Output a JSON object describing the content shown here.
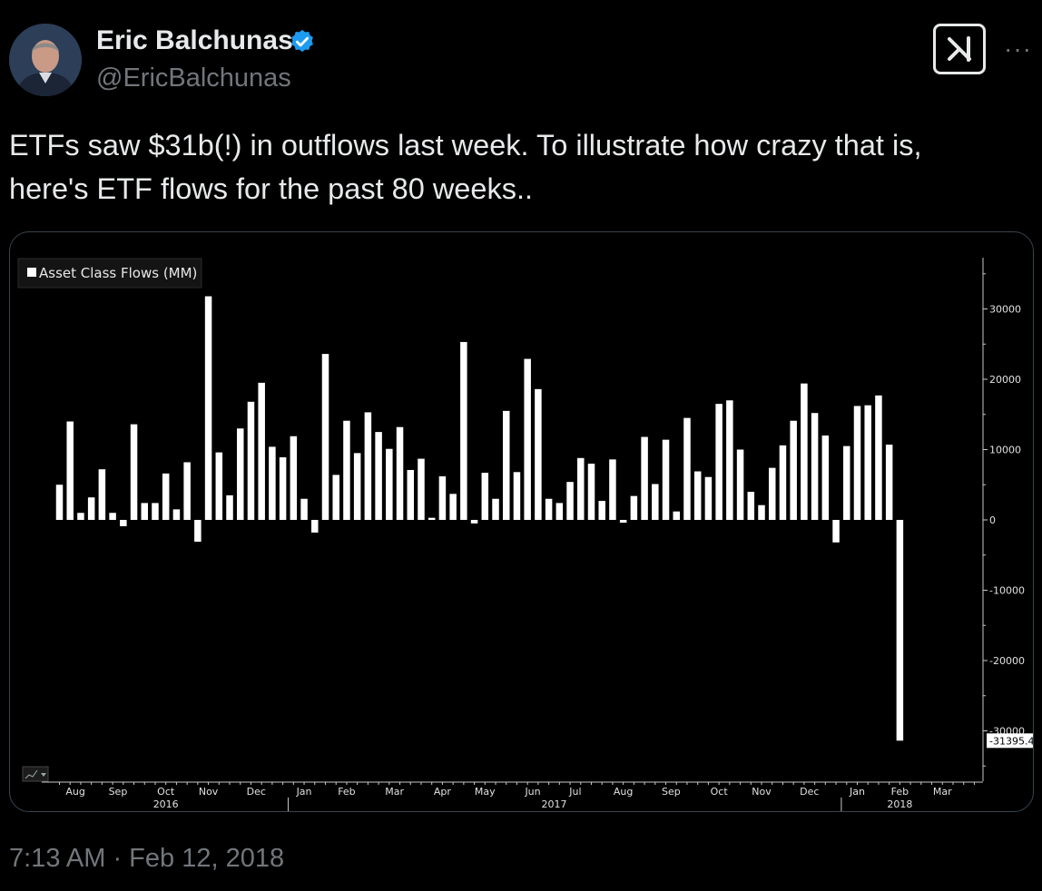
{
  "author": {
    "name": "Eric Balchunas",
    "handle": "@EricBalchunas",
    "verified": true
  },
  "tweet": {
    "text_line1": "ETFs saw $31b(!) in outflows last week. To illustrate how crazy that is,",
    "text_line2": "here's ETF flows for the past 80 weeks..",
    "timestamp": "7:13 AM · Feb 12, 2018"
  },
  "icons": {
    "more": "more-horizontal-icon",
    "grok": "grok-icon",
    "verified": "verified-badge-icon"
  },
  "colors": {
    "background": "#000000",
    "text": "#e7e9ea",
    "muted": "#71767b",
    "verified": "#1d9bf0",
    "bar": "#ffffff"
  },
  "chart_data": {
    "type": "bar",
    "legend": "Asset Class Flows (MM)",
    "ylim": [
      -37000,
      37000
    ],
    "y_ticks": [
      30000,
      20000,
      10000,
      0,
      -10000,
      -20000,
      -30000
    ],
    "y_tick_labels": [
      "30000",
      "20000",
      "10000",
      "0",
      "-10000",
      "-20000",
      "-30000"
    ],
    "last_value_label": "-31395.4",
    "month_labels": [
      {
        "label": "Aug",
        "week": 1.5
      },
      {
        "label": "Sep",
        "week": 5.5
      },
      {
        "label": "Oct",
        "week": 10
      },
      {
        "label": "Nov",
        "week": 14
      },
      {
        "label": "Dec",
        "week": 18.5
      },
      {
        "label": "Jan",
        "week": 23
      },
      {
        "label": "Feb",
        "week": 27
      },
      {
        "label": "Mar",
        "week": 31.5
      },
      {
        "label": "Apr",
        "week": 36
      },
      {
        "label": "May",
        "week": 40
      },
      {
        "label": "Jun",
        "week": 44.5
      },
      {
        "label": "Jul",
        "week": 48.5
      },
      {
        "label": "Aug",
        "week": 53
      },
      {
        "label": "Sep",
        "week": 57.5
      },
      {
        "label": "Oct",
        "week": 62
      },
      {
        "label": "Nov",
        "week": 66
      },
      {
        "label": "Dec",
        "week": 70.5
      },
      {
        "label": "Jan",
        "week": 75
      },
      {
        "label": "Feb",
        "week": 79
      },
      {
        "label": "Mar",
        "week": 83
      }
    ],
    "year_labels": [
      {
        "label": "2016",
        "week": 10
      },
      {
        "label": "2017",
        "week": 46.5
      },
      {
        "label": "2018",
        "week": 79
      }
    ],
    "year_boundaries": [
      21.5,
      73.5
    ],
    "series": [
      {
        "values": [
          5000,
          14000,
          1000,
          3200,
          7200,
          1000,
          -900,
          13600,
          2400,
          2400,
          6600,
          1500,
          8200,
          -3100,
          31800,
          9600,
          3500,
          13000,
          16800,
          19500,
          10400,
          8900,
          11900,
          3000,
          -1800,
          23600,
          6400,
          14100,
          9500,
          15300,
          12500,
          10100,
          13200,
          7100,
          8700,
          300,
          6200,
          3700,
          25300,
          -500,
          6700,
          3000,
          15500,
          6800,
          22900,
          18600,
          3000,
          2400,
          5400,
          8800,
          8000,
          2700,
          8600,
          -400,
          3400,
          11800,
          5100,
          11400,
          1200,
          14500,
          6900,
          6100,
          16500,
          17000,
          10000,
          4000,
          2100,
          7400,
          10600,
          14100,
          19400,
          15200,
          12000,
          -3200,
          10500,
          16200,
          16300,
          17700,
          10700,
          -31395.4
        ]
      }
    ]
  }
}
